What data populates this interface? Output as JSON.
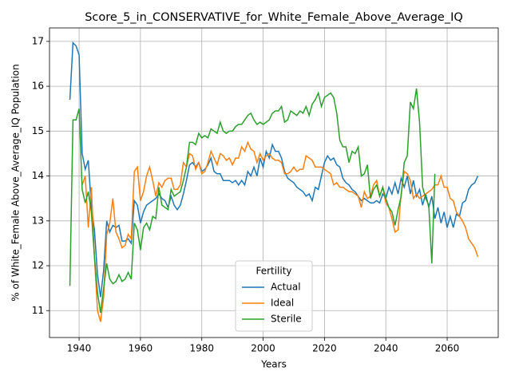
{
  "chart_data": {
    "type": "line",
    "title": "Score_5_in_CONSERVATIVE_for_White_Female_Above_Average_IQ",
    "x_label": "Years",
    "y_label": "% of White_Female Above_Average_IQ Population",
    "x": [
      1937,
      1938,
      1939,
      1940,
      1941,
      1942,
      1943,
      1944,
      1945,
      1946,
      1947,
      1948,
      1949,
      1950,
      1951,
      1952,
      1953,
      1954,
      1955,
      1956,
      1957,
      1958,
      1959,
      1960,
      1961,
      1962,
      1963,
      1964,
      1965,
      1966,
      1967,
      1968,
      1969,
      1970,
      1971,
      1972,
      1973,
      1974,
      1975,
      1976,
      1977,
      1978,
      1979,
      1980,
      1981,
      1982,
      1983,
      1984,
      1985,
      1986,
      1987,
      1988,
      1989,
      1990,
      1991,
      1992,
      1993,
      1994,
      1995,
      1996,
      1997,
      1998,
      1999,
      2000,
      2001,
      2002,
      2003,
      2004,
      2005,
      2006,
      2007,
      2008,
      2009,
      2010,
      2011,
      2012,
      2013,
      2014,
      2015,
      2016,
      2017,
      2018,
      2019,
      2020,
      2021,
      2022,
      2023,
      2024,
      2025,
      2026,
      2027,
      2028,
      2029,
      2030,
      2031,
      2032,
      2033,
      2034,
      2035,
      2036,
      2037,
      2038,
      2039,
      2040,
      2041,
      2042,
      2043,
      2044,
      2045,
      2046,
      2047,
      2048,
      2049,
      2050,
      2051,
      2052,
      2053,
      2054,
      2055,
      2056,
      2057,
      2058,
      2059,
      2060,
      2061,
      2062,
      2063,
      2064,
      2065,
      2066,
      2067,
      2068,
      2069,
      2070
    ],
    "series": [
      {
        "name": "Actual",
        "color": "#1f77b4",
        "values": [
          15.7,
          16.97,
          16.9,
          16.7,
          14.5,
          14.15,
          14.35,
          13.3,
          12.8,
          11.8,
          11.3,
          11.9,
          13.0,
          12.75,
          12.9,
          12.85,
          12.9,
          12.55,
          12.55,
          12.6,
          12.5,
          13.45,
          13.35,
          12.95,
          13.2,
          13.35,
          13.4,
          13.45,
          13.5,
          13.6,
          13.5,
          13.45,
          13.3,
          13.55,
          13.35,
          13.25,
          13.35,
          13.6,
          13.9,
          14.25,
          14.3,
          14.2,
          14.3,
          14.1,
          14.15,
          14.25,
          14.4,
          14.1,
          14.05,
          14.05,
          13.9,
          13.9,
          13.9,
          13.85,
          13.9,
          13.8,
          13.9,
          13.8,
          14.1,
          14.0,
          14.2,
          14.0,
          14.4,
          14.2,
          14.55,
          14.4,
          14.7,
          14.55,
          14.55,
          14.4,
          14.1,
          13.95,
          13.9,
          13.85,
          13.75,
          13.7,
          13.65,
          13.55,
          13.6,
          13.45,
          13.75,
          13.7,
          14.0,
          14.3,
          14.45,
          14.35,
          14.4,
          14.25,
          14.2,
          13.95,
          13.85,
          13.8,
          13.7,
          13.65,
          13.55,
          13.45,
          13.5,
          13.45,
          13.4,
          13.4,
          13.45,
          13.4,
          13.6,
          13.5,
          13.75,
          13.6,
          13.85,
          13.6,
          13.95,
          13.75,
          14.0,
          13.6,
          13.9,
          13.55,
          13.7,
          13.35,
          13.6,
          13.3,
          13.55,
          13.05,
          13.3,
          12.95,
          13.2,
          12.85,
          13.1,
          12.85,
          13.15,
          13.1,
          13.4,
          13.45,
          13.7,
          13.8,
          13.85,
          14.0
        ]
      },
      {
        "name": "Ideal",
        "color": "#ff7f0e",
        "values": [
          null,
          null,
          null,
          null,
          13.8,
          14.0,
          12.85,
          13.75,
          12.2,
          11.0,
          10.75,
          11.3,
          12.7,
          12.95,
          13.5,
          12.75,
          12.6,
          12.4,
          12.45,
          12.7,
          12.6,
          14.1,
          14.2,
          13.45,
          13.65,
          14.0,
          14.2,
          13.9,
          13.55,
          13.85,
          13.75,
          13.9,
          13.95,
          13.95,
          13.7,
          13.7,
          13.8,
          14.3,
          14.2,
          14.5,
          14.45,
          14.15,
          14.3,
          14.05,
          14.1,
          14.3,
          14.55,
          14.4,
          14.25,
          14.5,
          14.45,
          14.35,
          14.4,
          14.25,
          14.4,
          14.4,
          14.65,
          14.55,
          14.75,
          14.6,
          14.55,
          14.3,
          14.5,
          14.35,
          14.45,
          14.5,
          14.4,
          14.35,
          14.35,
          14.3,
          14.05,
          14.05,
          14.1,
          14.2,
          14.1,
          14.15,
          14.15,
          14.45,
          14.4,
          14.35,
          14.2,
          14.2,
          14.2,
          14.15,
          14.1,
          14.05,
          13.8,
          13.85,
          13.75,
          13.75,
          13.7,
          13.65,
          13.65,
          13.6,
          13.55,
          13.3,
          13.65,
          13.5,
          13.55,
          13.8,
          13.9,
          13.55,
          13.75,
          13.4,
          13.3,
          13.05,
          12.75,
          12.8,
          13.6,
          14.1,
          14.05,
          13.9,
          13.5,
          13.6,
          13.5,
          13.55,
          13.6,
          13.65,
          13.7,
          13.8,
          13.8,
          14.0,
          13.75,
          13.75,
          13.5,
          13.45,
          13.2,
          13.1,
          13.0,
          12.85,
          12.6,
          12.5,
          12.4,
          12.2
        ]
      },
      {
        "name": "Sterile",
        "color": "#2ca02c",
        "values": [
          11.55,
          15.25,
          15.25,
          15.5,
          13.7,
          13.4,
          13.65,
          13.2,
          12.2,
          11.4,
          10.95,
          11.5,
          12.05,
          11.7,
          11.6,
          11.65,
          11.8,
          11.65,
          11.7,
          11.85,
          11.7,
          12.95,
          12.8,
          12.35,
          12.85,
          12.95,
          12.8,
          13.1,
          13.05,
          13.75,
          13.35,
          13.3,
          13.25,
          13.7,
          13.55,
          13.6,
          13.65,
          13.9,
          14.2,
          14.75,
          14.75,
          14.7,
          14.95,
          14.85,
          14.9,
          14.85,
          15.05,
          15.0,
          14.95,
          15.2,
          15.0,
          14.95,
          15.0,
          15.0,
          15.1,
          15.15,
          15.15,
          15.25,
          15.35,
          15.4,
          15.25,
          15.15,
          15.2,
          15.15,
          15.2,
          15.25,
          15.4,
          15.45,
          15.45,
          15.55,
          15.2,
          15.25,
          15.45,
          15.4,
          15.35,
          15.45,
          15.4,
          15.55,
          15.35,
          15.6,
          15.7,
          15.85,
          15.55,
          15.75,
          15.8,
          15.85,
          15.75,
          15.4,
          14.8,
          14.65,
          14.65,
          14.3,
          14.55,
          14.5,
          14.65,
          14.0,
          14.05,
          14.25,
          13.5,
          13.7,
          13.8,
          13.55,
          13.75,
          13.5,
          13.3,
          13.2,
          12.9,
          13.25,
          13.55,
          14.3,
          14.45,
          15.65,
          15.5,
          15.95,
          15.2,
          13.75,
          13.5,
          13.35,
          12.05,
          14.05,
          null,
          null,
          null,
          null,
          null,
          null,
          null,
          null,
          null,
          null,
          null,
          null,
          null,
          null
        ]
      }
    ],
    "xlim": [
      1930.35,
      2076.65
    ],
    "ylim": [
      10.4,
      17.3
    ],
    "xticks": [
      1940,
      1960,
      1980,
      2000,
      2020,
      2040,
      2060
    ],
    "yticks": [
      11,
      12,
      13,
      14,
      15,
      16,
      17
    ],
    "grid": true,
    "legend_title": "Fertility",
    "legend_position": "lower center"
  }
}
